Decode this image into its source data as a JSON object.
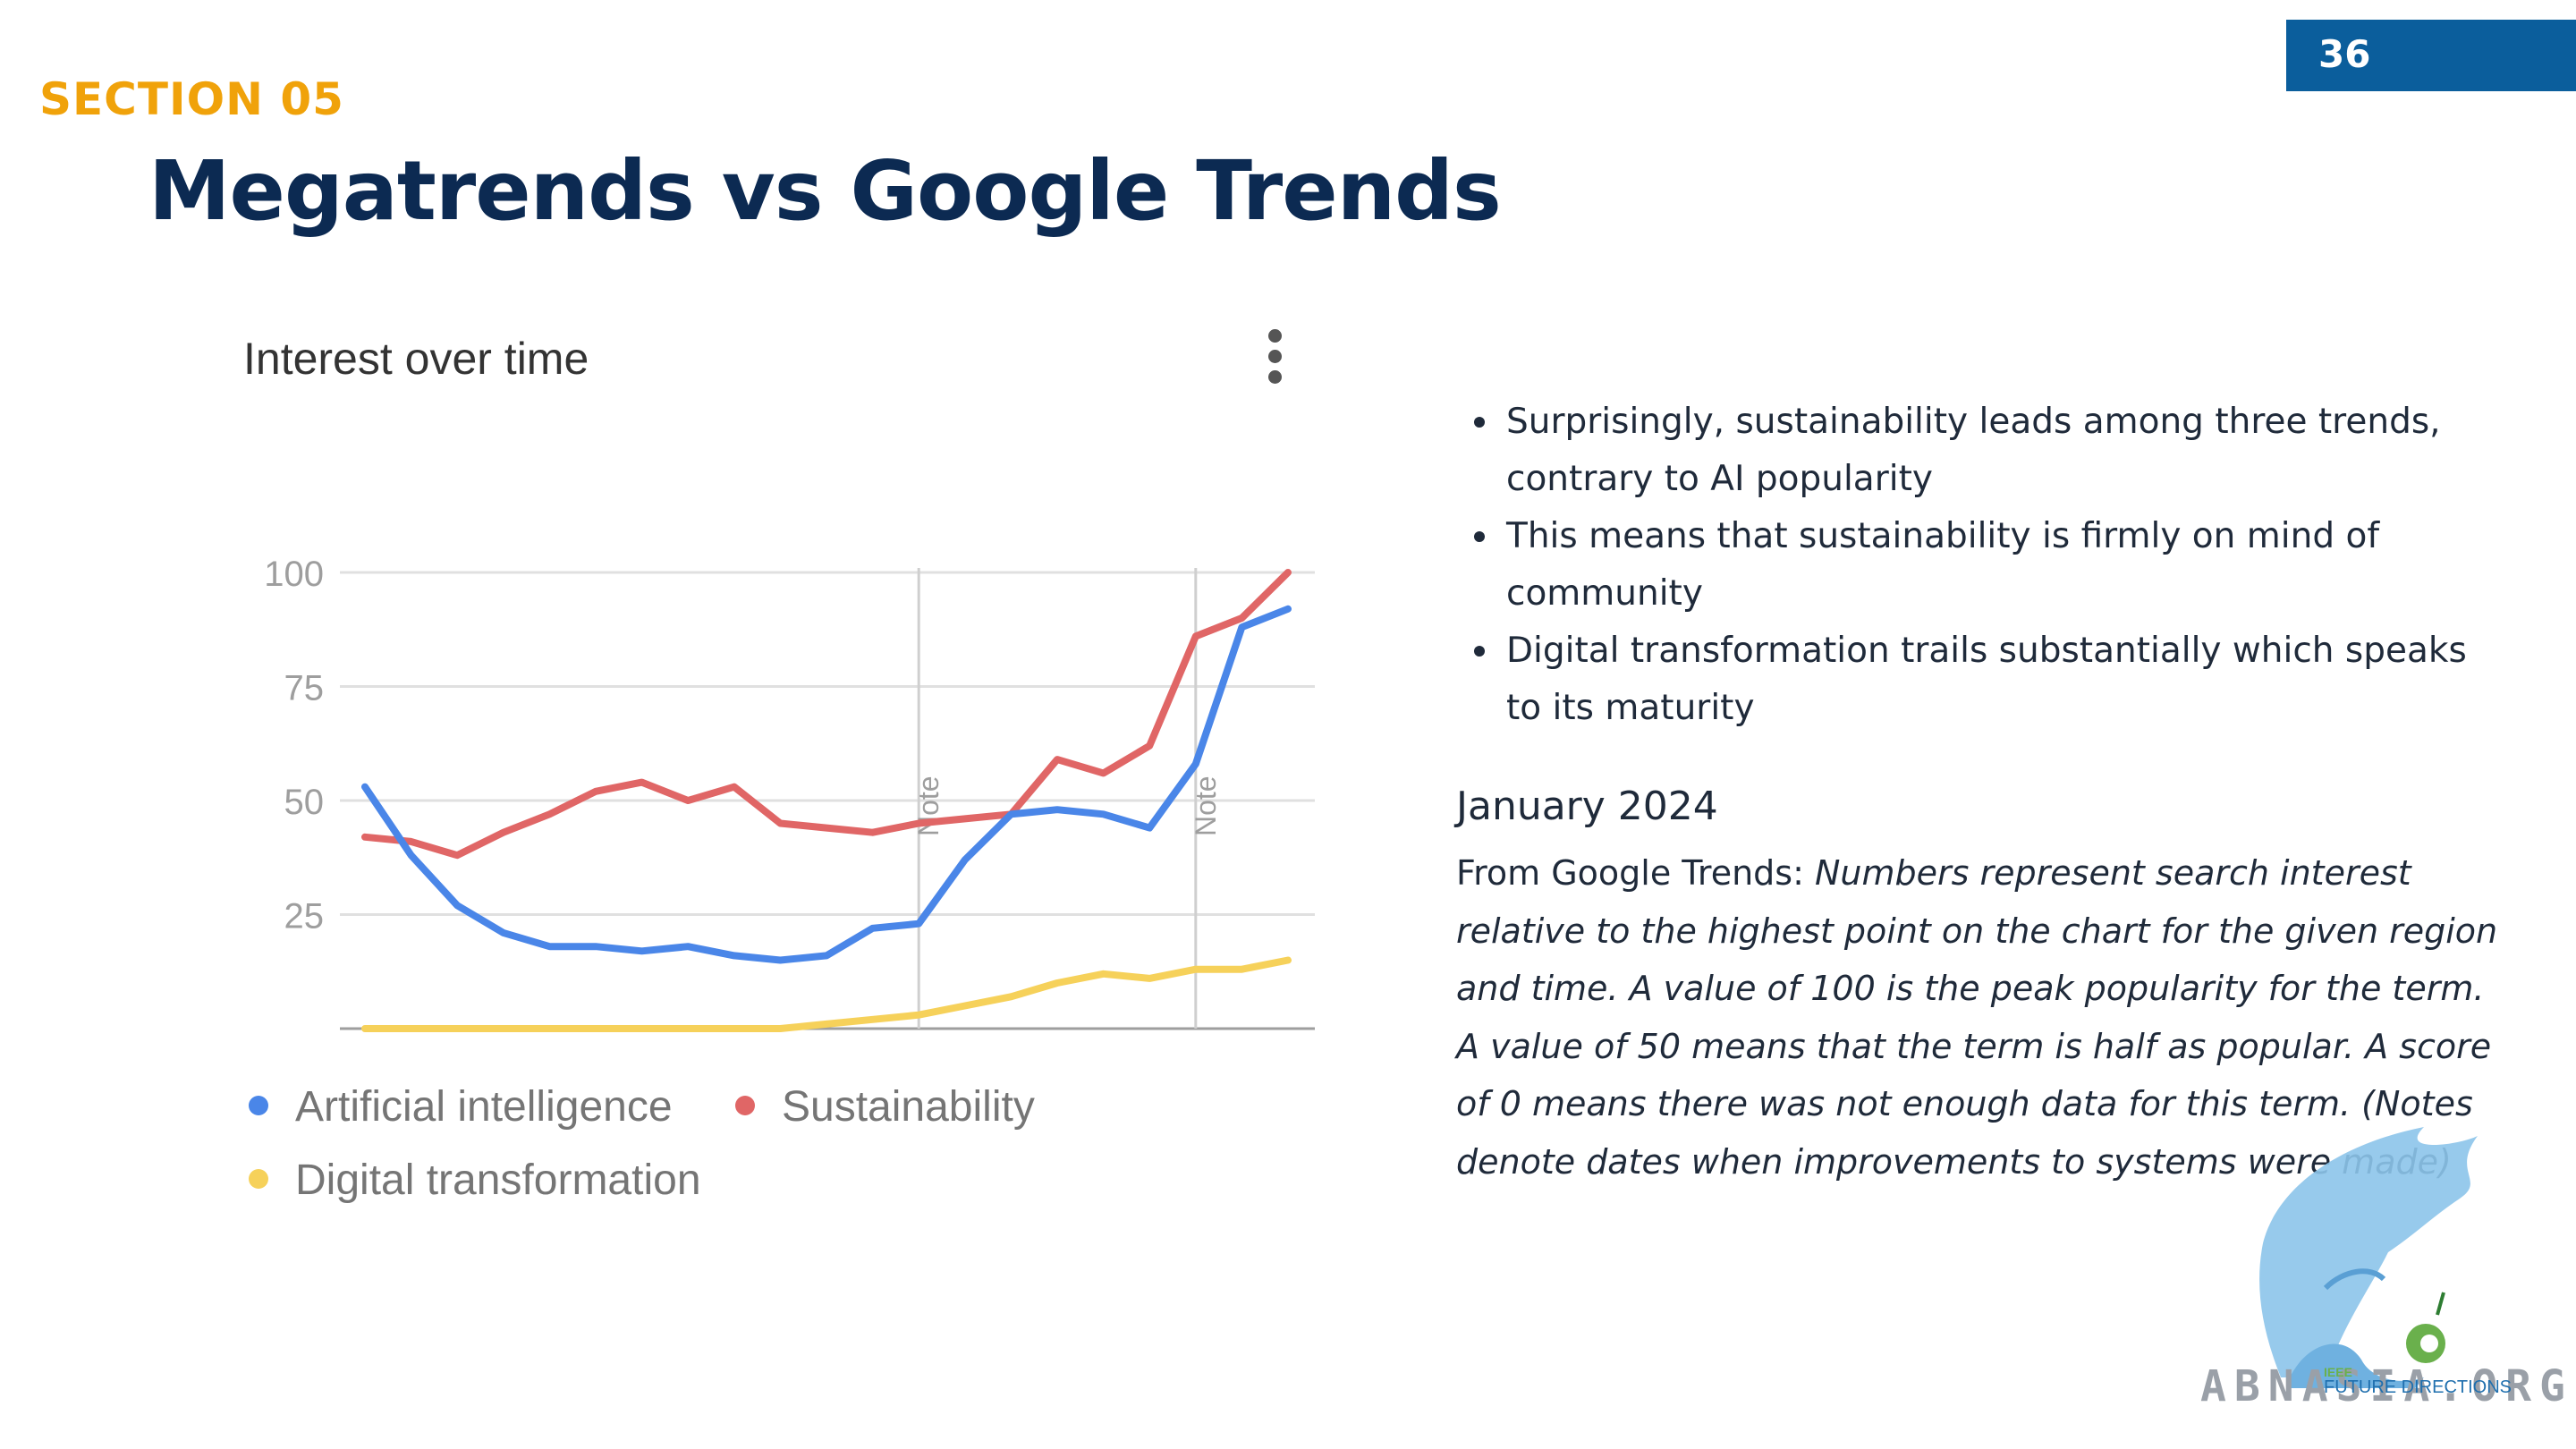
{
  "slide": {
    "page_number": "36",
    "section": "SECTION 05",
    "title": "Megatrends vs Google Trends"
  },
  "trends_panel": {
    "title": "Interest over time",
    "menu_icon": "more-vert-icon"
  },
  "chart_data": {
    "type": "line",
    "title": "Interest over time",
    "xlabel": "",
    "ylabel": "",
    "ylim": [
      0,
      100
    ],
    "yticks": [
      25,
      50,
      75,
      100
    ],
    "grid": true,
    "legend_position": "bottom-left",
    "x": [
      1,
      2,
      3,
      4,
      5,
      6,
      7,
      8,
      9,
      10,
      11,
      12,
      13,
      14,
      15,
      16,
      17,
      18,
      19,
      20,
      21
    ],
    "annotations": [
      {
        "label": "Note",
        "x": 13
      },
      {
        "label": "Note",
        "x": 19
      }
    ],
    "series": [
      {
        "name": "Artificial intelligence",
        "color": "#4a86e8",
        "values": [
          53,
          38,
          27,
          21,
          18,
          18,
          17,
          18,
          16,
          15,
          16,
          22,
          23,
          37,
          47,
          48,
          47,
          44,
          58,
          88,
          92
        ]
      },
      {
        "name": "Sustainability",
        "color": "#e06666",
        "values": [
          42,
          41,
          38,
          43,
          47,
          52,
          54,
          50,
          53,
          45,
          44,
          43,
          45,
          46,
          47,
          59,
          56,
          62,
          86,
          90,
          100
        ]
      },
      {
        "name": "Digital transformation",
        "color": "#f6d15a",
        "values": [
          0,
          0,
          0,
          0,
          0,
          0,
          0,
          0,
          0,
          0,
          1,
          2,
          3,
          5,
          7,
          10,
          12,
          11,
          13,
          13,
          15
        ]
      }
    ]
  },
  "bullets": [
    "Surprisingly, sustainability leads among three trends, contrary to AI popularity",
    "This means that sustainability is firmly on mind of community",
    "Digital transformation trails substantially which speaks to its maturity"
  ],
  "source_note": {
    "date": "January 2024",
    "prefix": "From Google Trends: ",
    "text": "Numbers represent search interest relative to the highest point on the chart for the given region and time. A value of 100 is the peak popularity for the term. A value of 50 means that the term is half as popular. A score of 0 means there was not enough data for this term. (Notes denote dates when improvements to systems were made)"
  },
  "logo": {
    "text": "ABNASIA.ORG",
    "sub_small": "IEEE",
    "sub": "FUTURE DIRECTIONS"
  }
}
